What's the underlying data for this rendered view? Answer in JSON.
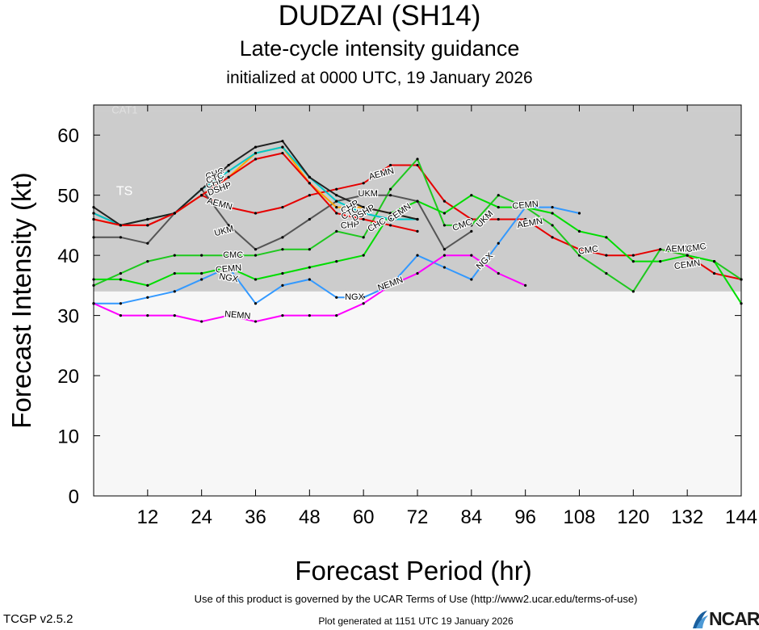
{
  "header": {
    "title": "DUDZAI (SH14)",
    "subtitle": "Late-cycle intensity guidance",
    "init": "initialized at 0000 UTC, 19 January 2026"
  },
  "footer": {
    "terms": "Use of this product is governed by the UCAR Terms of Use (http://www2.ucar.edu/terms-of-use)",
    "version": "TCGP v2.5.2",
    "generated": "Plot generated at 1151 UTC   19 January 2026",
    "logo": "NCAR"
  },
  "chart_data": {
    "type": "line",
    "xlabel": "Forecast Period (hr)",
    "ylabel": "Forecast Intensity (kt)",
    "xlim": [
      0,
      144
    ],
    "ylim": [
      0,
      65
    ],
    "xticks": [
      12,
      24,
      36,
      48,
      60,
      72,
      84,
      96,
      108,
      120,
      132,
      144
    ],
    "yticks": [
      0,
      10,
      20,
      30,
      40,
      50,
      60
    ],
    "bands": [
      {
        "label": "TS",
        "from": 34,
        "to": 64,
        "color": "#cccccc"
      },
      {
        "label": "CAT1",
        "from": 64,
        "to": 65,
        "color": "#cccccc"
      }
    ],
    "series": [
      {
        "name": "AEMN",
        "color": "#e60000",
        "points": [
          [
            0,
            47
          ],
          [
            6,
            45
          ],
          [
            12,
            45
          ],
          [
            18,
            47
          ],
          [
            24,
            50
          ],
          [
            30,
            48
          ],
          [
            36,
            47
          ],
          [
            42,
            48
          ],
          [
            48,
            50
          ],
          [
            54,
            51
          ],
          [
            60,
            52
          ],
          [
            66,
            55
          ],
          [
            72,
            55
          ],
          [
            78,
            49
          ],
          [
            84,
            46
          ],
          [
            90,
            46
          ],
          [
            96,
            46
          ],
          [
            102,
            43
          ],
          [
            108,
            41
          ],
          [
            114,
            40
          ],
          [
            120,
            40
          ],
          [
            126,
            41
          ],
          [
            132,
            40
          ],
          [
            138,
            37
          ],
          [
            144,
            36
          ]
        ],
        "labels": [
          {
            "x": 28,
            "y": 48.5,
            "text": "AEMN",
            "rot": 15
          },
          {
            "x": 64,
            "y": 53.5,
            "text": "AEMN",
            "rot": -15
          },
          {
            "x": 97,
            "y": 45.3,
            "text": "AEMN",
            "rot": -10
          },
          {
            "x": 130,
            "y": 41,
            "text": "AEMN",
            "rot": 0
          }
        ]
      },
      {
        "name": "CEMN",
        "color": "#1ec81e",
        "points": [
          [
            0,
            35
          ],
          [
            6,
            37
          ],
          [
            12,
            39
          ],
          [
            18,
            40
          ],
          [
            24,
            40
          ],
          [
            30,
            40
          ],
          [
            36,
            40
          ],
          [
            42,
            41
          ],
          [
            48,
            41
          ],
          [
            54,
            44
          ],
          [
            60,
            43
          ],
          [
            66,
            51
          ],
          [
            72,
            56
          ],
          [
            78,
            45
          ],
          [
            84,
            45
          ],
          [
            90,
            50
          ],
          [
            96,
            48
          ],
          [
            102,
            45
          ],
          [
            108,
            40
          ],
          [
            114,
            37
          ],
          [
            120,
            34
          ],
          [
            126,
            41
          ],
          [
            132,
            40
          ],
          [
            138,
            39
          ],
          [
            144,
            36
          ]
        ],
        "labels": [
          {
            "x": 68,
            "y": 47,
            "text": "CEMN",
            "rot": -35
          },
          {
            "x": 30,
            "y": 37.7,
            "text": "CEMN",
            "rot": -5
          },
          {
            "x": 96,
            "y": 48.3,
            "text": "CEMN",
            "rot": -5
          },
          {
            "x": 132,
            "y": 38.4,
            "text": "CEMN",
            "rot": -8
          }
        ]
      },
      {
        "name": "CMC",
        "color": "#00dd00",
        "points": [
          [
            0,
            36
          ],
          [
            6,
            36
          ],
          [
            12,
            35
          ],
          [
            18,
            37
          ],
          [
            24,
            37
          ],
          [
            30,
            38
          ],
          [
            36,
            36
          ],
          [
            42,
            37
          ],
          [
            48,
            38
          ],
          [
            54,
            39
          ],
          [
            60,
            40
          ],
          [
            66,
            47
          ],
          [
            72,
            49
          ],
          [
            78,
            47
          ],
          [
            84,
            50
          ],
          [
            90,
            48
          ],
          [
            96,
            48
          ],
          [
            102,
            47
          ],
          [
            108,
            44
          ],
          [
            114,
            43
          ],
          [
            120,
            39
          ],
          [
            126,
            39
          ],
          [
            132,
            40
          ],
          [
            138,
            39
          ],
          [
            144,
            32
          ]
        ],
        "labels": [
          {
            "x": 31,
            "y": 40,
            "text": "CMC",
            "rot": 0
          },
          {
            "x": 82,
            "y": 45,
            "text": "CMC",
            "rot": -20
          },
          {
            "x": 110,
            "y": 40.8,
            "text": "CMC",
            "rot": -8
          },
          {
            "x": 134,
            "y": 41.2,
            "text": "CMC",
            "rot": -10
          }
        ]
      },
      {
        "name": "NGX",
        "color": "#3399ff",
        "points": [
          [
            0,
            32
          ],
          [
            6,
            32
          ],
          [
            12,
            33
          ],
          [
            18,
            34
          ],
          [
            24,
            36
          ],
          [
            30,
            38
          ],
          [
            36,
            32
          ],
          [
            42,
            35
          ],
          [
            48,
            36
          ],
          [
            54,
            33
          ],
          [
            60,
            33
          ],
          [
            66,
            35
          ],
          [
            72,
            40
          ],
          [
            78,
            38
          ],
          [
            84,
            36
          ],
          [
            90,
            42
          ],
          [
            96,
            48
          ],
          [
            102,
            48
          ],
          [
            108,
            47
          ]
        ],
        "labels": [
          {
            "x": 30,
            "y": 36.2,
            "text": "NGX",
            "rot": 10
          },
          {
            "x": 58,
            "y": 33,
            "text": "NGX",
            "rot": 0
          },
          {
            "x": 87,
            "y": 39,
            "text": "NGX",
            "rot": -45
          }
        ]
      },
      {
        "name": "NEMN",
        "color": "#ff00ff",
        "points": [
          [
            0,
            32
          ],
          [
            6,
            30
          ],
          [
            12,
            30
          ],
          [
            18,
            30
          ],
          [
            24,
            29
          ],
          [
            30,
            30
          ],
          [
            36,
            29
          ],
          [
            42,
            30
          ],
          [
            48,
            30
          ],
          [
            54,
            30
          ],
          [
            60,
            32
          ],
          [
            66,
            35
          ],
          [
            72,
            37
          ],
          [
            78,
            40
          ],
          [
            84,
            40
          ],
          [
            90,
            37
          ],
          [
            96,
            35
          ]
        ],
        "labels": [
          {
            "x": 32,
            "y": 30,
            "text": "NEMN",
            "rot": 5
          },
          {
            "x": 66,
            "y": 35.2,
            "text": "NEMN",
            "rot": -20
          }
        ]
      },
      {
        "name": "UKM",
        "color": "#555555",
        "points": [
          [
            0,
            43
          ],
          [
            6,
            43
          ],
          [
            12,
            42
          ],
          [
            18,
            47
          ],
          [
            24,
            51
          ],
          [
            30,
            45
          ],
          [
            36,
            41
          ],
          [
            42,
            43
          ],
          [
            48,
            46
          ],
          [
            54,
            49
          ],
          [
            60,
            50
          ],
          [
            66,
            50
          ],
          [
            72,
            49
          ],
          [
            78,
            41
          ],
          [
            84,
            44
          ]
        ],
        "labels": [
          {
            "x": 29,
            "y": 44,
            "text": "UKM",
            "rot": -15
          },
          {
            "x": 61,
            "y": 50.2,
            "text": "UKM",
            "rot": 0
          },
          {
            "x": 87,
            "y": 46,
            "text": "UKM",
            "rot": -45
          }
        ]
      },
      {
        "name": "CHP",
        "color": "#ffa500",
        "points": [
          [
            0,
            46
          ],
          [
            6,
            45
          ],
          [
            12,
            46
          ],
          [
            18,
            47
          ],
          [
            24,
            50
          ],
          [
            30,
            53
          ],
          [
            36,
            57
          ],
          [
            42,
            58
          ],
          [
            48,
            52
          ],
          [
            54,
            48
          ],
          [
            60,
            48
          ],
          [
            66,
            47
          ],
          [
            72,
            46
          ]
        ],
        "labels": [
          {
            "x": 27,
            "y": 52,
            "text": "CHP",
            "rot": -20
          },
          {
            "x": 57,
            "y": 45,
            "text": "CHP",
            "rot": -5
          },
          {
            "x": 57,
            "y": 48,
            "text": "CHP",
            "rot": -30
          }
        ]
      },
      {
        "name": "CHC",
        "color": "#00c8c8",
        "points": [
          [
            0,
            47
          ],
          [
            6,
            45
          ],
          [
            12,
            46
          ],
          [
            18,
            47
          ],
          [
            24,
            51
          ],
          [
            30,
            54
          ],
          [
            36,
            57
          ],
          [
            42,
            58
          ],
          [
            48,
            53
          ],
          [
            54,
            49
          ],
          [
            60,
            47
          ],
          [
            66,
            46
          ],
          [
            72,
            46
          ]
        ],
        "labels": [
          {
            "x": 27,
            "y": 53.5,
            "text": "CHC",
            "rot": -20
          },
          {
            "x": 63,
            "y": 45,
            "text": "CHC",
            "rot": -30
          }
        ]
      },
      {
        "name": "CTC",
        "color": "#222222",
        "points": [
          [
            0,
            48
          ],
          [
            6,
            45
          ],
          [
            12,
            46
          ],
          [
            18,
            47
          ],
          [
            24,
            51
          ],
          [
            30,
            55
          ],
          [
            36,
            58
          ],
          [
            42,
            59
          ],
          [
            48,
            53
          ],
          [
            54,
            50
          ],
          [
            60,
            48
          ],
          [
            66,
            47
          ],
          [
            72,
            46
          ]
        ],
        "labels": [
          {
            "x": 27,
            "y": 52.8,
            "text": "CTC",
            "rot": -20
          },
          {
            "x": 57,
            "y": 47,
            "text": "CTC",
            "rot": -30
          }
        ]
      },
      {
        "name": "DSHP",
        "color": "#e60000",
        "points": [
          [
            0,
            46
          ],
          [
            6,
            45
          ],
          [
            12,
            45
          ],
          [
            18,
            47
          ],
          [
            24,
            50
          ],
          [
            30,
            53
          ],
          [
            36,
            56
          ],
          [
            42,
            57
          ],
          [
            48,
            52
          ],
          [
            54,
            47
          ],
          [
            60,
            46
          ],
          [
            66,
            45
          ],
          [
            72,
            44
          ]
        ],
        "labels": [
          {
            "x": 28,
            "y": 51,
            "text": "DSHP",
            "rot": -20
          },
          {
            "x": 60,
            "y": 47,
            "text": "DSHP",
            "rot": -30
          }
        ]
      }
    ]
  }
}
